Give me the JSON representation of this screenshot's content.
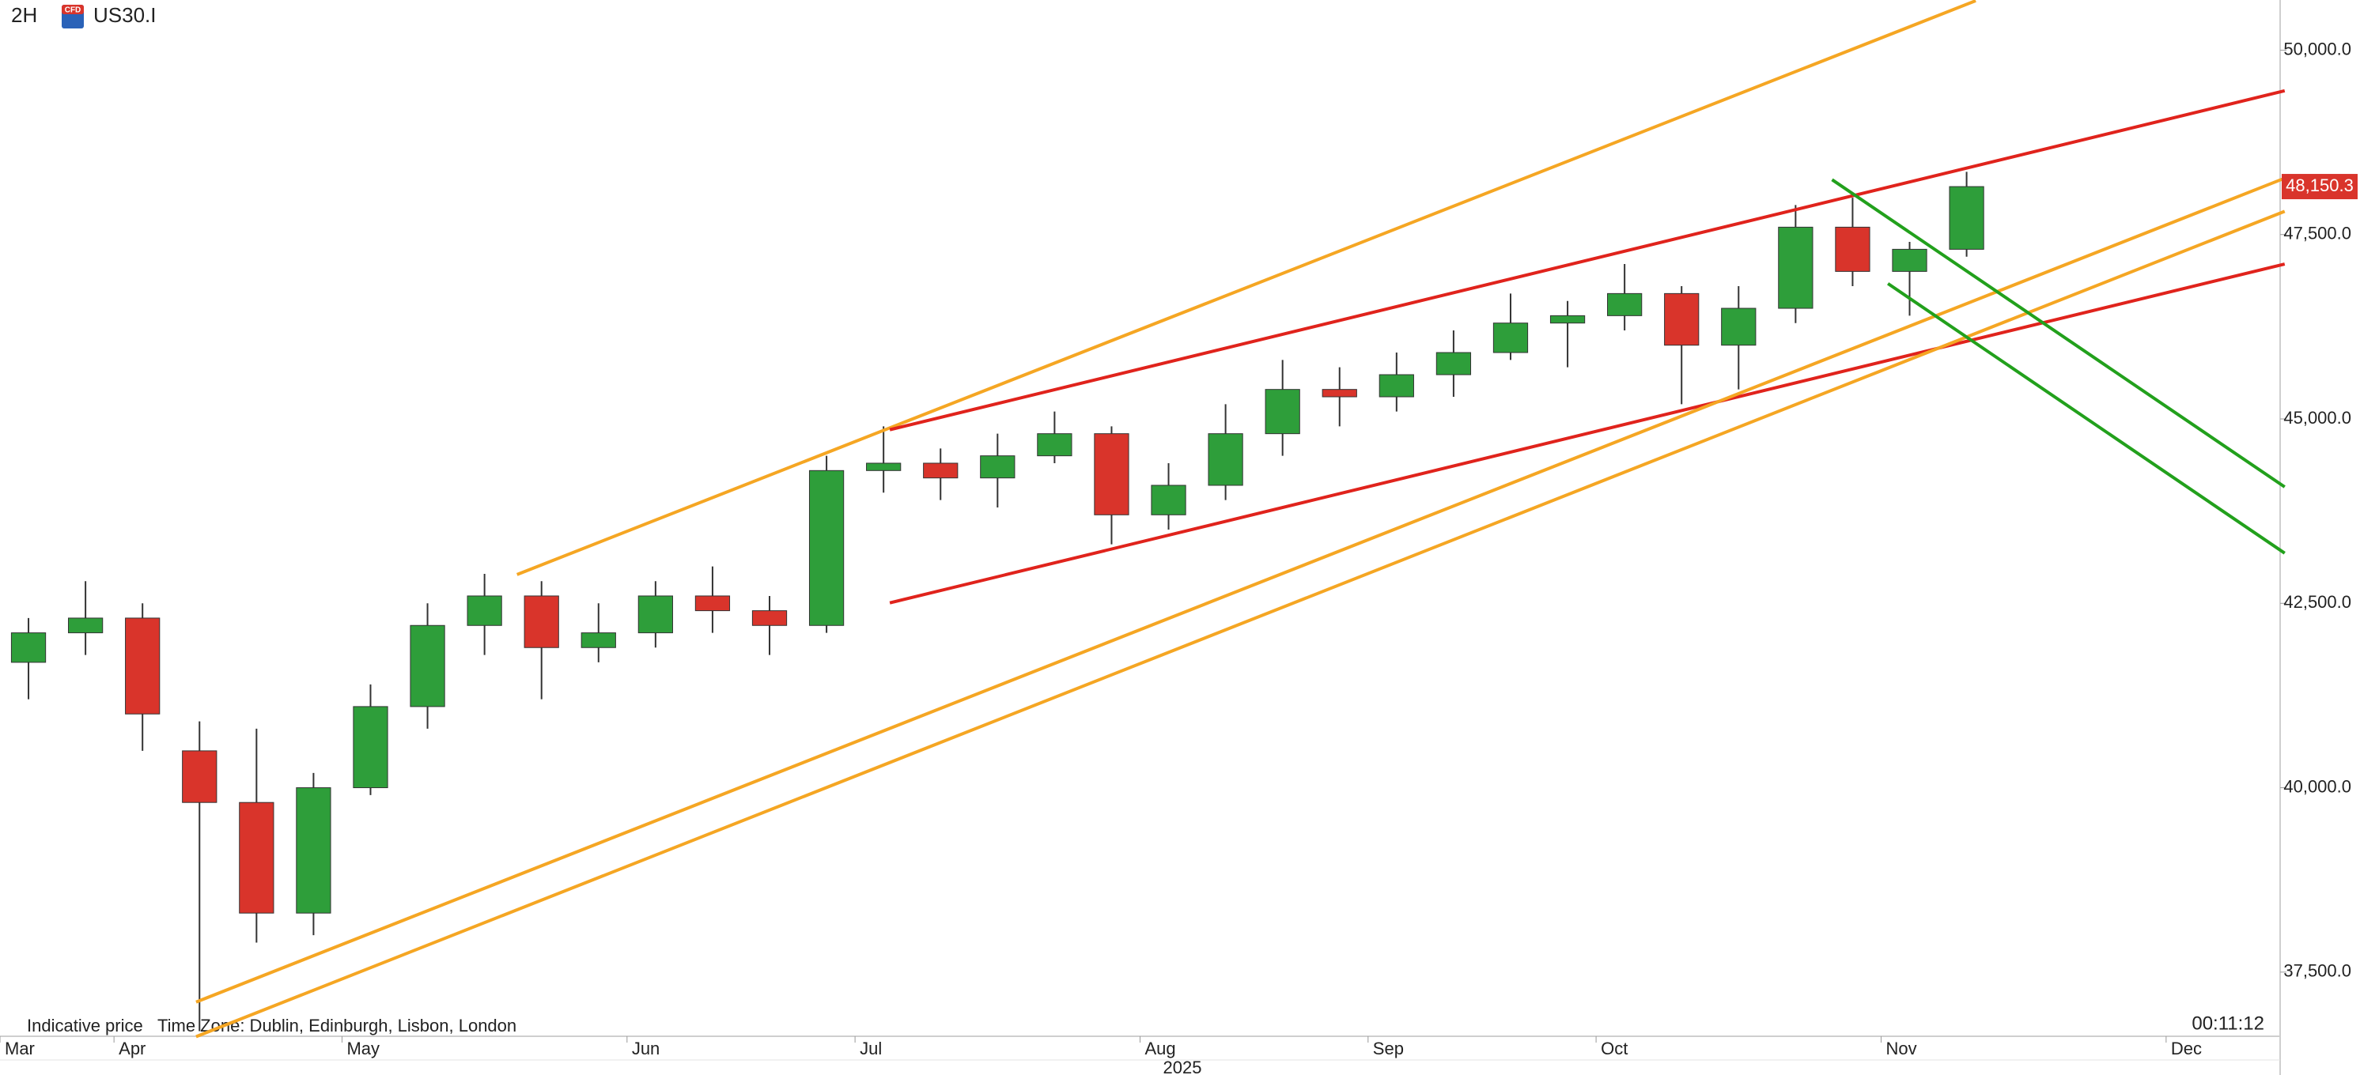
{
  "chart_data": {
    "type": "candlestick",
    "interval": "2H",
    "symbol": "US30.I",
    "badge": "CFD",
    "categories": [
      "Mar",
      null,
      "Apr",
      null,
      null,
      null,
      "May",
      null,
      null,
      null,
      null,
      "Jun",
      null,
      null,
      null,
      "Jul",
      null,
      null,
      null,
      null,
      "Aug",
      null,
      null,
      null,
      "Sep",
      null,
      null,
      null,
      "Oct",
      null,
      null,
      null,
      null,
      "Nov",
      null,
      null,
      null,
      null,
      "Dec",
      null
    ],
    "x_year": "2025",
    "open": [
      41700,
      42100,
      42300,
      40500,
      39800,
      38300,
      40000,
      41100,
      42200,
      42600,
      41900,
      42100,
      42600,
      42400,
      42200,
      44300,
      44400,
      44200,
      44500,
      44800,
      43700,
      44100,
      44800,
      45400,
      45300,
      45600,
      45900,
      46300,
      46400,
      46700,
      46000,
      46500,
      47600,
      47000,
      47300,
      null,
      null,
      null,
      null,
      null
    ],
    "high": [
      42300,
      42800,
      42500,
      40900,
      40800,
      40200,
      41400,
      42500,
      42900,
      42800,
      42500,
      42800,
      43000,
      42600,
      44500,
      44900,
      44600,
      44800,
      45100,
      44900,
      44400,
      45200,
      45800,
      45700,
      45900,
      46200,
      46700,
      46600,
      47100,
      46800,
      46800,
      47900,
      48000,
      47400,
      48350,
      null,
      null,
      null,
      null,
      null
    ],
    "low": [
      41200,
      41800,
      40500,
      36700,
      37900,
      38000,
      39900,
      40800,
      41800,
      41200,
      41700,
      41900,
      42100,
      41800,
      42100,
      44000,
      43900,
      43800,
      44400,
      43300,
      43500,
      43900,
      44500,
      44900,
      45100,
      45300,
      45800,
      45700,
      46200,
      45200,
      45400,
      46300,
      46800,
      46400,
      47200,
      null,
      null,
      null,
      null,
      null
    ],
    "close": [
      42100,
      42300,
      41000,
      39800,
      38300,
      40000,
      41100,
      42200,
      42600,
      41900,
      42100,
      42600,
      42400,
      42200,
      44300,
      44400,
      44200,
      44500,
      44800,
      43700,
      44100,
      44800,
      45400,
      45300,
      45600,
      45900,
      46300,
      46400,
      46700,
      46000,
      46500,
      47600,
      47000,
      47300,
      48150,
      null,
      null,
      null,
      null,
      null
    ],
    "up_color": "#2e9e3a",
    "down_color": "#d9342b",
    "ylim": [
      36630,
      50680
    ],
    "yticks": [
      {
        "value": 37500,
        "label": "37,500.0"
      },
      {
        "value": 40000,
        "label": "40,000.0"
      },
      {
        "value": 42500,
        "label": "42,500.0"
      },
      {
        "value": 45000,
        "label": "45,000.0"
      },
      {
        "value": 47500,
        "label": "47,500.0"
      },
      {
        "value": 50000,
        "label": "50,000.0"
      }
    ],
    "last_price": {
      "value": 48150.3,
      "label": "48,150.3"
    },
    "last_price_color": "#d9342b",
    "trendlines": [
      {
        "color": "#f5a623",
        "x": [
          9.07,
          34.66
        ],
        "y": [
          42890,
          50670
        ]
      },
      {
        "color": "#e0231c",
        "x": [
          15.61,
          40.08
        ],
        "y": [
          44854,
          49449
        ]
      },
      {
        "color": "#e0231c",
        "x": [
          15.61,
          40.08
        ],
        "y": [
          42506,
          47100
        ]
      },
      {
        "color": "#f5a623",
        "x": [
          3.44,
          40.08
        ],
        "y": [
          37094,
          48264
        ]
      },
      {
        "color": "#f5a623",
        "x": [
          3.44,
          40.08
        ],
        "y": [
          36625,
          47815
        ]
      },
      {
        "color": "#22a01c",
        "x": [
          32.14,
          40.08
        ],
        "y": [
          48244,
          44078
        ]
      },
      {
        "color": "#22a01c",
        "x": [
          33.12,
          40.08
        ],
        "y": [
          46835,
          43180
        ]
      }
    ],
    "footer_left": "Indicative price",
    "footer_timezone": "Time Zone: Dublin, Edinburgh, Lisbon, London",
    "countdown": "00:11:12"
  }
}
